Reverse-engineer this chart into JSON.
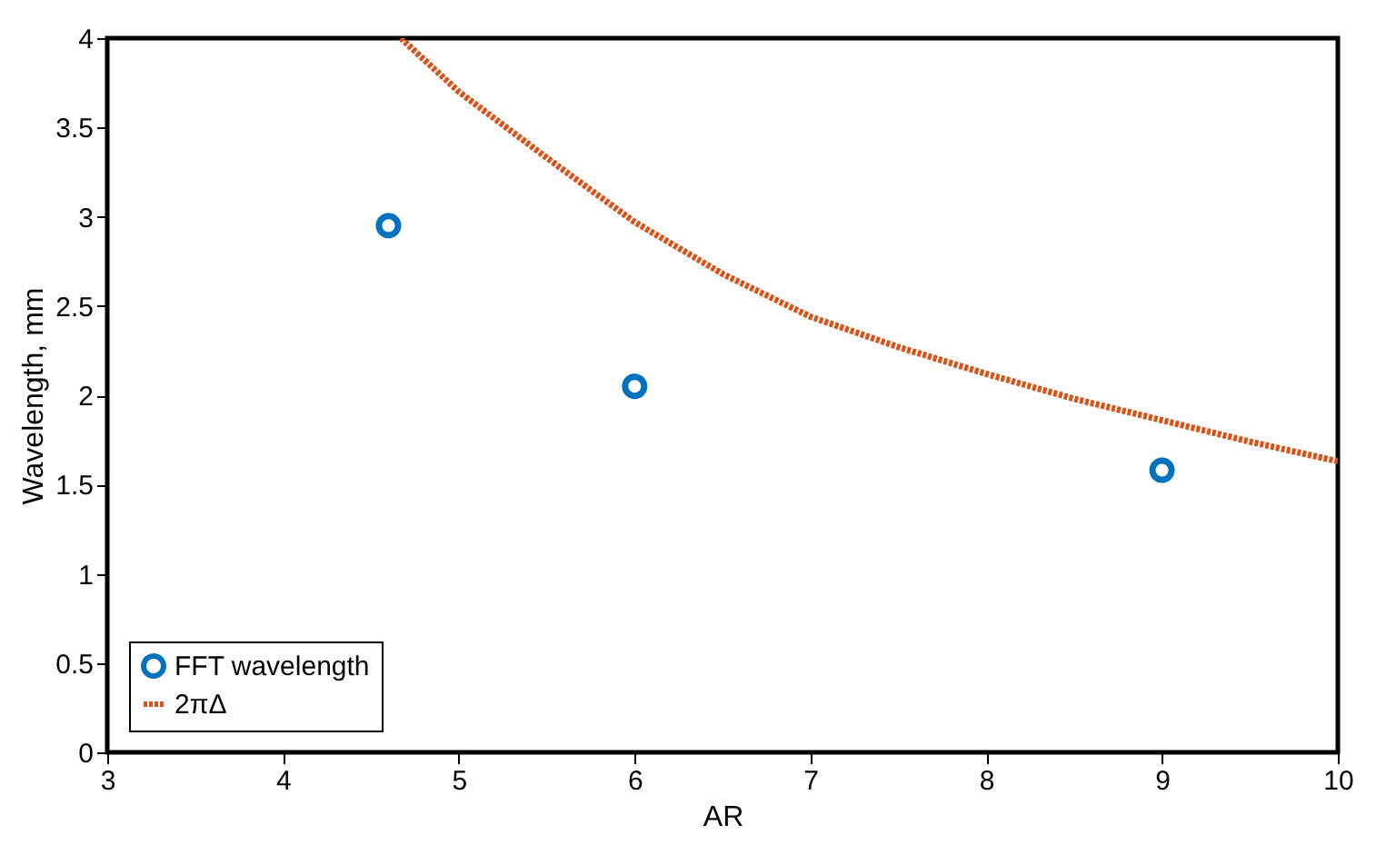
{
  "chart_data": {
    "type": "scatter",
    "xlabel": "AR",
    "ylabel": "Wavelength, mm",
    "series": [
      {
        "name": "FFT wavelength",
        "type": "scatter",
        "color": "#0072bd",
        "marker": "circle",
        "x": [
          4.6,
          6,
          9
        ],
        "values": [
          2.95,
          2.05,
          1.58
        ]
      },
      {
        "name": "2πΔ",
        "type": "line",
        "color": "#d95319",
        "line_style": "dotted",
        "marker": "none",
        "x": [
          4.67,
          5,
          5.5,
          6,
          6.5,
          7,
          7.5,
          8,
          8.5,
          9,
          9.5,
          10
        ],
        "values": [
          4,
          3.7,
          3.33,
          2.97,
          2.68,
          2.44,
          2.27,
          2.12,
          1.98,
          1.86,
          1.74,
          1.63
        ]
      }
    ],
    "xlim": [
      3,
      10
    ],
    "xticks": [
      3,
      4,
      5,
      6,
      7,
      8,
      9,
      10
    ],
    "ylim": [
      0,
      4
    ],
    "yticks": [
      0,
      0.5,
      1,
      1.5,
      2,
      2.5,
      3,
      3.5,
      4
    ],
    "grid": false,
    "legend": "bottom left"
  }
}
